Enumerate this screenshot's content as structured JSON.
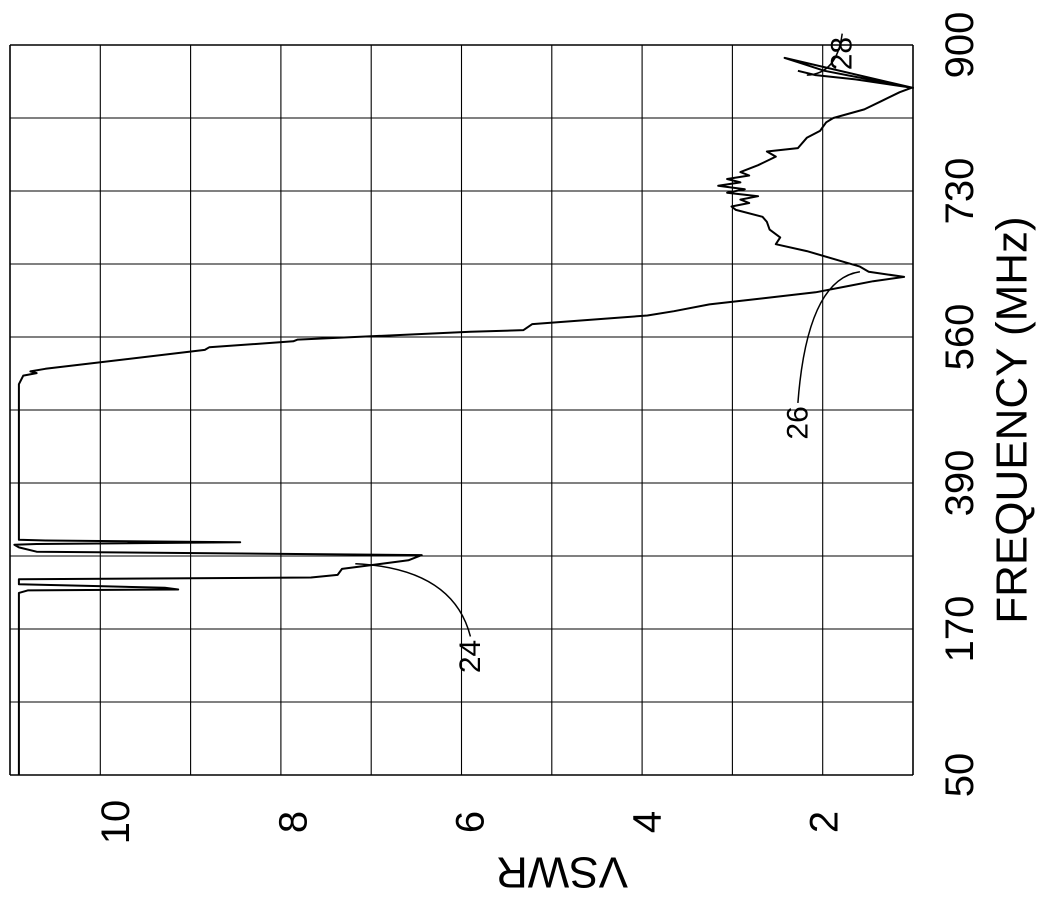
{
  "chart_data": {
    "type": "line",
    "orientation": "rotated-90-ccw",
    "xlabel": "FREQUENCY (MHz)",
    "ylabel": "VSWR",
    "x_ticks": [
      "50",
      "170",
      "390",
      "560",
      "730",
      "900"
    ],
    "y_ticks": [
      "10",
      "8",
      "6",
      "4",
      "2"
    ],
    "xlim": [
      50,
      900
    ],
    "ylim": [
      1,
      11.2
    ],
    "grid": true,
    "series": [
      {
        "values_xy": [
          [
            50,
            11.1
          ],
          [
            200,
            11.1
          ],
          [
            262,
            11.1
          ],
          [
            265,
            11.0
          ],
          [
            266,
            9.3
          ],
          [
            268,
            9.45
          ],
          [
            270,
            10.2
          ],
          [
            272,
            11.1
          ],
          [
            278,
            11.1
          ],
          [
            280,
            7.8
          ],
          [
            283,
            7.5
          ],
          [
            290,
            7.45
          ],
          [
            296,
            7.0
          ],
          [
            300,
            6.7
          ],
          [
            306,
            6.55
          ],
          [
            310,
            10.9
          ],
          [
            315,
            11.1
          ],
          [
            318,
            11.15
          ],
          [
            319,
            10.9
          ],
          [
            321,
            8.6
          ],
          [
            323,
            10.8
          ],
          [
            324,
            11.1
          ],
          [
            505,
            11.1
          ],
          [
            515,
            11.05
          ],
          [
            518,
            10.9
          ],
          [
            520,
            10.97
          ],
          [
            523,
            10.8
          ],
          [
            545,
            9.0
          ],
          [
            548,
            8.95
          ],
          [
            555,
            8.0
          ],
          [
            557,
            7.95
          ],
          [
            566,
            6.0
          ],
          [
            568,
            5.4
          ],
          [
            575,
            5.3
          ],
          [
            585,
            4.0
          ],
          [
            590,
            3.7
          ],
          [
            598,
            3.3
          ],
          [
            605,
            2.7
          ],
          [
            612,
            2.1
          ],
          [
            620,
            1.7
          ],
          [
            625,
            1.45
          ],
          [
            630,
            1.1
          ],
          [
            636,
            1.5
          ],
          [
            642,
            1.6
          ],
          [
            648,
            1.8
          ],
          [
            660,
            2.2
          ],
          [
            668,
            2.55
          ],
          [
            676,
            2.5
          ],
          [
            685,
            2.62
          ],
          [
            694,
            2.65
          ],
          [
            700,
            2.7
          ],
          [
            708,
            3.0
          ],
          [
            712,
            3.05
          ],
          [
            716,
            2.85
          ],
          [
            720,
            2.95
          ],
          [
            724,
            2.75
          ],
          [
            728,
            3.1
          ],
          [
            732,
            2.9
          ],
          [
            736,
            3.2
          ],
          [
            740,
            2.95
          ],
          [
            744,
            3.1
          ],
          [
            748,
            2.85
          ],
          [
            752,
            2.95
          ],
          [
            760,
            2.75
          ],
          [
            770,
            2.55
          ],
          [
            776,
            2.65
          ],
          [
            780,
            2.3
          ],
          [
            792,
            2.2
          ],
          [
            800,
            2.05
          ],
          [
            810,
            1.98
          ],
          [
            815,
            1.9
          ],
          [
            825,
            1.55
          ],
          [
            835,
            1.35
          ],
          [
            845,
            1.15
          ],
          [
            850,
            1.02
          ],
          [
            860,
            1.5
          ],
          [
            870,
            2.0
          ],
          [
            880,
            2.3
          ],
          [
            885,
            2.45
          ],
          [
            850,
            1.0
          ],
          [
            860,
            1.65
          ],
          [
            865,
            2.1
          ],
          [
            870,
            2.3
          ]
        ]
      }
    ],
    "annotations": [
      {
        "label": "24",
        "target_xy": [
          296,
          7.3
        ],
        "label_xy": [
          188,
          6.0
        ]
      },
      {
        "label": "26",
        "target_xy": [
          636,
          1.6
        ],
        "label_xy": [
          460,
          2.3
        ]
      },
      {
        "label": "28",
        "target_xy": [
          865,
          2.2
        ],
        "label_xy": [
          890,
          1.8
        ]
      }
    ]
  }
}
